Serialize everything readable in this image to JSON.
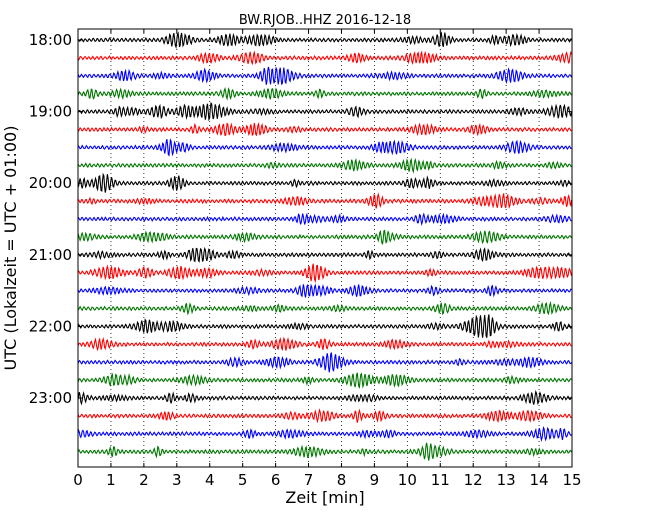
{
  "chart_data": {
    "type": "line",
    "title": "BW.RJOB..HHZ 2016-12-18",
    "xlabel": "Zeit  [min]",
    "ylabel": "UTC (Lokalzeit = UTC + 01:00)",
    "xlim": [
      0,
      15
    ],
    "x_ticks": [
      "0",
      "1",
      "2",
      "3",
      "4",
      "5",
      "6",
      "7",
      "8",
      "9",
      "10",
      "11",
      "12",
      "13",
      "14",
      "15"
    ],
    "y_tick_labels": [
      "18:00",
      "19:00",
      "20:00",
      "21:00",
      "22:00",
      "23:00"
    ],
    "traces_per_hour": 4,
    "trace_count": 24,
    "trace_colors": [
      "#000000",
      "#ff0000",
      "#0000ff",
      "#007700"
    ],
    "grid": "vertical dotted at each minute"
  }
}
